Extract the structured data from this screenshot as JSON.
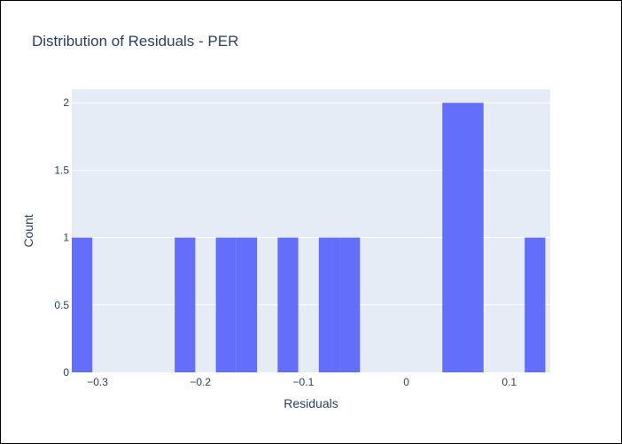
{
  "chart_data": {
    "type": "bar",
    "title": "Distribution of Residuals - PER",
    "xlabel": "Residuals",
    "ylabel": "Count",
    "xlim": [
      -0.325,
      0.1398
    ],
    "ylim": [
      0,
      2.1
    ],
    "bin_width": 0.02,
    "x_ticks": [
      {
        "value": -0.3,
        "label": "−0.3"
      },
      {
        "value": -0.2,
        "label": "−0.2"
      },
      {
        "value": -0.1,
        "label": "−0.1"
      },
      {
        "value": 0,
        "label": "0"
      },
      {
        "value": 0.1,
        "label": "0.1"
      }
    ],
    "y_ticks": [
      {
        "value": 0,
        "label": "0"
      },
      {
        "value": 0.5,
        "label": "0.5"
      },
      {
        "value": 1,
        "label": "1"
      },
      {
        "value": 1.5,
        "label": "1.5"
      },
      {
        "value": 2,
        "label": "2"
      }
    ],
    "bins": [
      {
        "start": -0.325,
        "end": -0.305,
        "count": 1
      },
      {
        "start": -0.225,
        "end": -0.205,
        "count": 1
      },
      {
        "start": -0.185,
        "end": -0.165,
        "count": 1
      },
      {
        "start": -0.165,
        "end": -0.145,
        "count": 1
      },
      {
        "start": -0.125,
        "end": -0.105,
        "count": 1
      },
      {
        "start": -0.085,
        "end": -0.065,
        "count": 1
      },
      {
        "start": -0.065,
        "end": -0.045,
        "count": 1
      },
      {
        "start": 0.035,
        "end": 0.055,
        "count": 2
      },
      {
        "start": 0.055,
        "end": 0.075,
        "count": 2
      },
      {
        "start": 0.115,
        "end": 0.135,
        "count": 1
      }
    ],
    "bar_color": "#636efa",
    "plot_bg": "#e5ecf6",
    "grid": true,
    "legend": false
  }
}
